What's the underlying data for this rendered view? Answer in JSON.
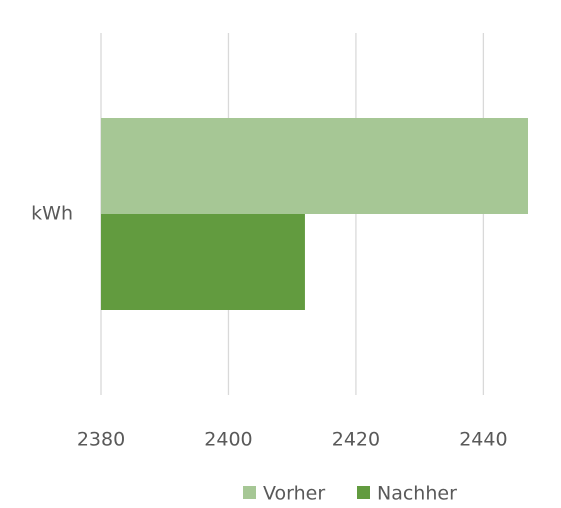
{
  "chart_data": {
    "type": "hbar",
    "categories": [
      "kWh"
    ],
    "series": [
      {
        "name": "Vorher",
        "color": "#a6c795",
        "values": [
          2447
        ]
      },
      {
        "name": "Nachher",
        "color": "#629b3f",
        "values": [
          2412
        ]
      }
    ],
    "xlim": [
      2380,
      2447
    ],
    "xticks": [
      2380,
      2400,
      2420,
      2440
    ],
    "grid": true,
    "legend": "bottom"
  }
}
